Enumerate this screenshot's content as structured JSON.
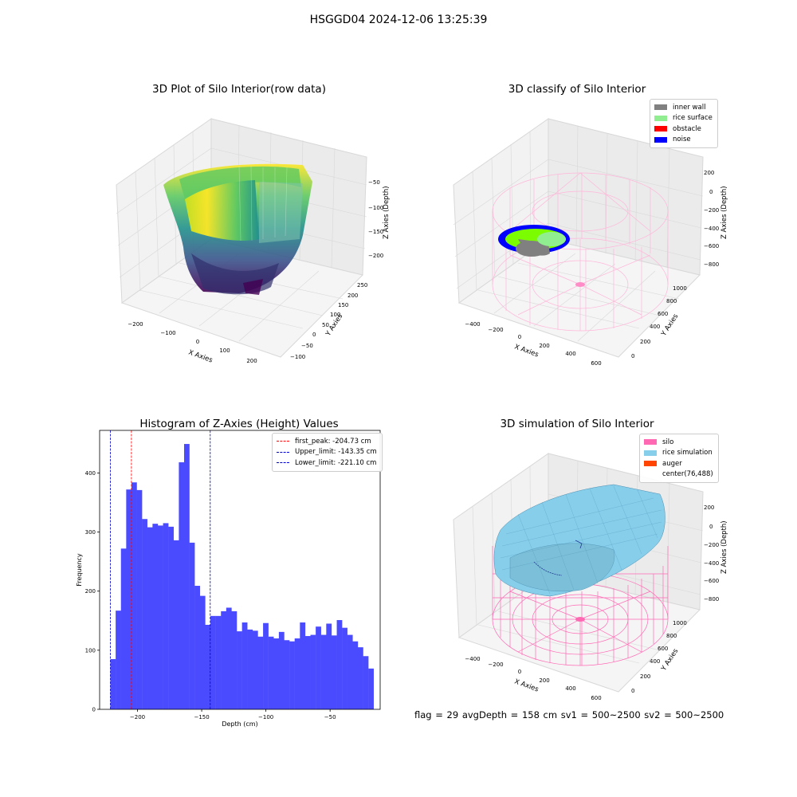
{
  "figure": {
    "suptitle": "HSGGD04 2024-12-06 13:25:39",
    "status_line": "flag = 29  avgDepth = 158 cm  sv1 = 500~2500  sv2 = 500~2500"
  },
  "colors": {
    "histogram_bar": "#4a4aff",
    "peak_line": "#ff0000",
    "limit_line": "#0000cc",
    "inner_wall": "#808080",
    "rice_surface": "#90ee90",
    "obstacle": "#ff0000",
    "noise": "#0000ff",
    "silo": "#ff69b4",
    "rice_simulation": "#87ceeb",
    "auger": "#ff4500"
  },
  "chart_data": [
    {
      "type": "scatter",
      "title": "3D Plot of Silo Interior(row data)",
      "xlabel": "X Axies",
      "ylabel": "Y Axies",
      "zlabel": "Z Axies (Depth)",
      "x_ticks": [
        "−200",
        "−100",
        "0",
        "100",
        "200"
      ],
      "y_ticks": [
        "−100",
        "−50",
        "0",
        "50",
        "100",
        "150",
        "200",
        "250"
      ],
      "z_ticks": [
        "−200",
        "−150",
        "−100",
        "−50"
      ],
      "colormap": "viridis"
    },
    {
      "type": "scatter",
      "title": "3D classify of Silo Interior",
      "xlabel": "X Axies",
      "ylabel": "Y Axies",
      "zlabel": "Z Axies (Depth)",
      "x_ticks": [
        "−400",
        "−200",
        "0",
        "200",
        "400",
        "600"
      ],
      "y_ticks": [
        "0",
        "200",
        "400",
        "600",
        "800",
        "1000"
      ],
      "z_ticks": [
        "−800",
        "−600",
        "−400",
        "−200",
        "0",
        "200"
      ],
      "legend": [
        {
          "label": "inner wall",
          "color": "#808080"
        },
        {
          "label": "rice surface",
          "color": "#90ee90"
        },
        {
          "label": "obstacle",
          "color": "#ff0000"
        },
        {
          "label": "noise",
          "color": "#0000ff"
        }
      ],
      "legend_position": "top-right"
    },
    {
      "type": "bar",
      "title": "Histogram of Z-Axies (Height) Values",
      "xlabel": "Depth (cm)",
      "ylabel": "Frequency",
      "xlim": [
        -229.5,
        -11
      ],
      "ylim": [
        0,
        472
      ],
      "x_ticks": [
        -200,
        -150,
        -100,
        -50
      ],
      "x_tick_labels": [
        "−200",
        "−150",
        "−100",
        "−50"
      ],
      "y_ticks": [
        0,
        100,
        200,
        300,
        400
      ],
      "bins": {
        "start": -221.1,
        "width": 4.1
      },
      "values": [
        85,
        167,
        272,
        372,
        384,
        371,
        322,
        308,
        314,
        311,
        315,
        309,
        286,
        418,
        449,
        282,
        209,
        192,
        143,
        158,
        158,
        166,
        172,
        166,
        132,
        147,
        135,
        133,
        123,
        146,
        123,
        120,
        131,
        117,
        115,
        120,
        147,
        124,
        126,
        140,
        126,
        145,
        125,
        151,
        138,
        126,
        115,
        105,
        90,
        69
      ],
      "vlines": [
        {
          "label": "first_peak: -204.73 cm",
          "x": -204.73,
          "color": "#ff0000"
        },
        {
          "label": "Upper_limit: -143.35 cm",
          "x": -143.35,
          "color": "#0000cc"
        },
        {
          "label": "Lower_limit: -221.10 cm",
          "x": -221.1,
          "color": "#0000cc"
        }
      ],
      "legend_position": "top-right"
    },
    {
      "type": "surface",
      "title": "3D simulation of Silo Interior",
      "xlabel": "X Axies",
      "ylabel": "Y Axies",
      "zlabel": "Z Axies (Depth)",
      "x_ticks": [
        "−400",
        "−200",
        "0",
        "200",
        "400",
        "600"
      ],
      "y_ticks": [
        "0",
        "200",
        "400",
        "600",
        "800",
        "1000"
      ],
      "z_ticks": [
        "−800",
        "−600",
        "−400",
        "−200",
        "0",
        "200"
      ],
      "legend": [
        {
          "label": "silo",
          "color": "#ff69b4"
        },
        {
          "label": "rice simulation",
          "color": "#87ceeb"
        },
        {
          "label": "auger",
          "color": "#ff4500"
        },
        {
          "label": "center(76,488)",
          "color": ""
        }
      ],
      "legend_position": "top-right"
    }
  ]
}
